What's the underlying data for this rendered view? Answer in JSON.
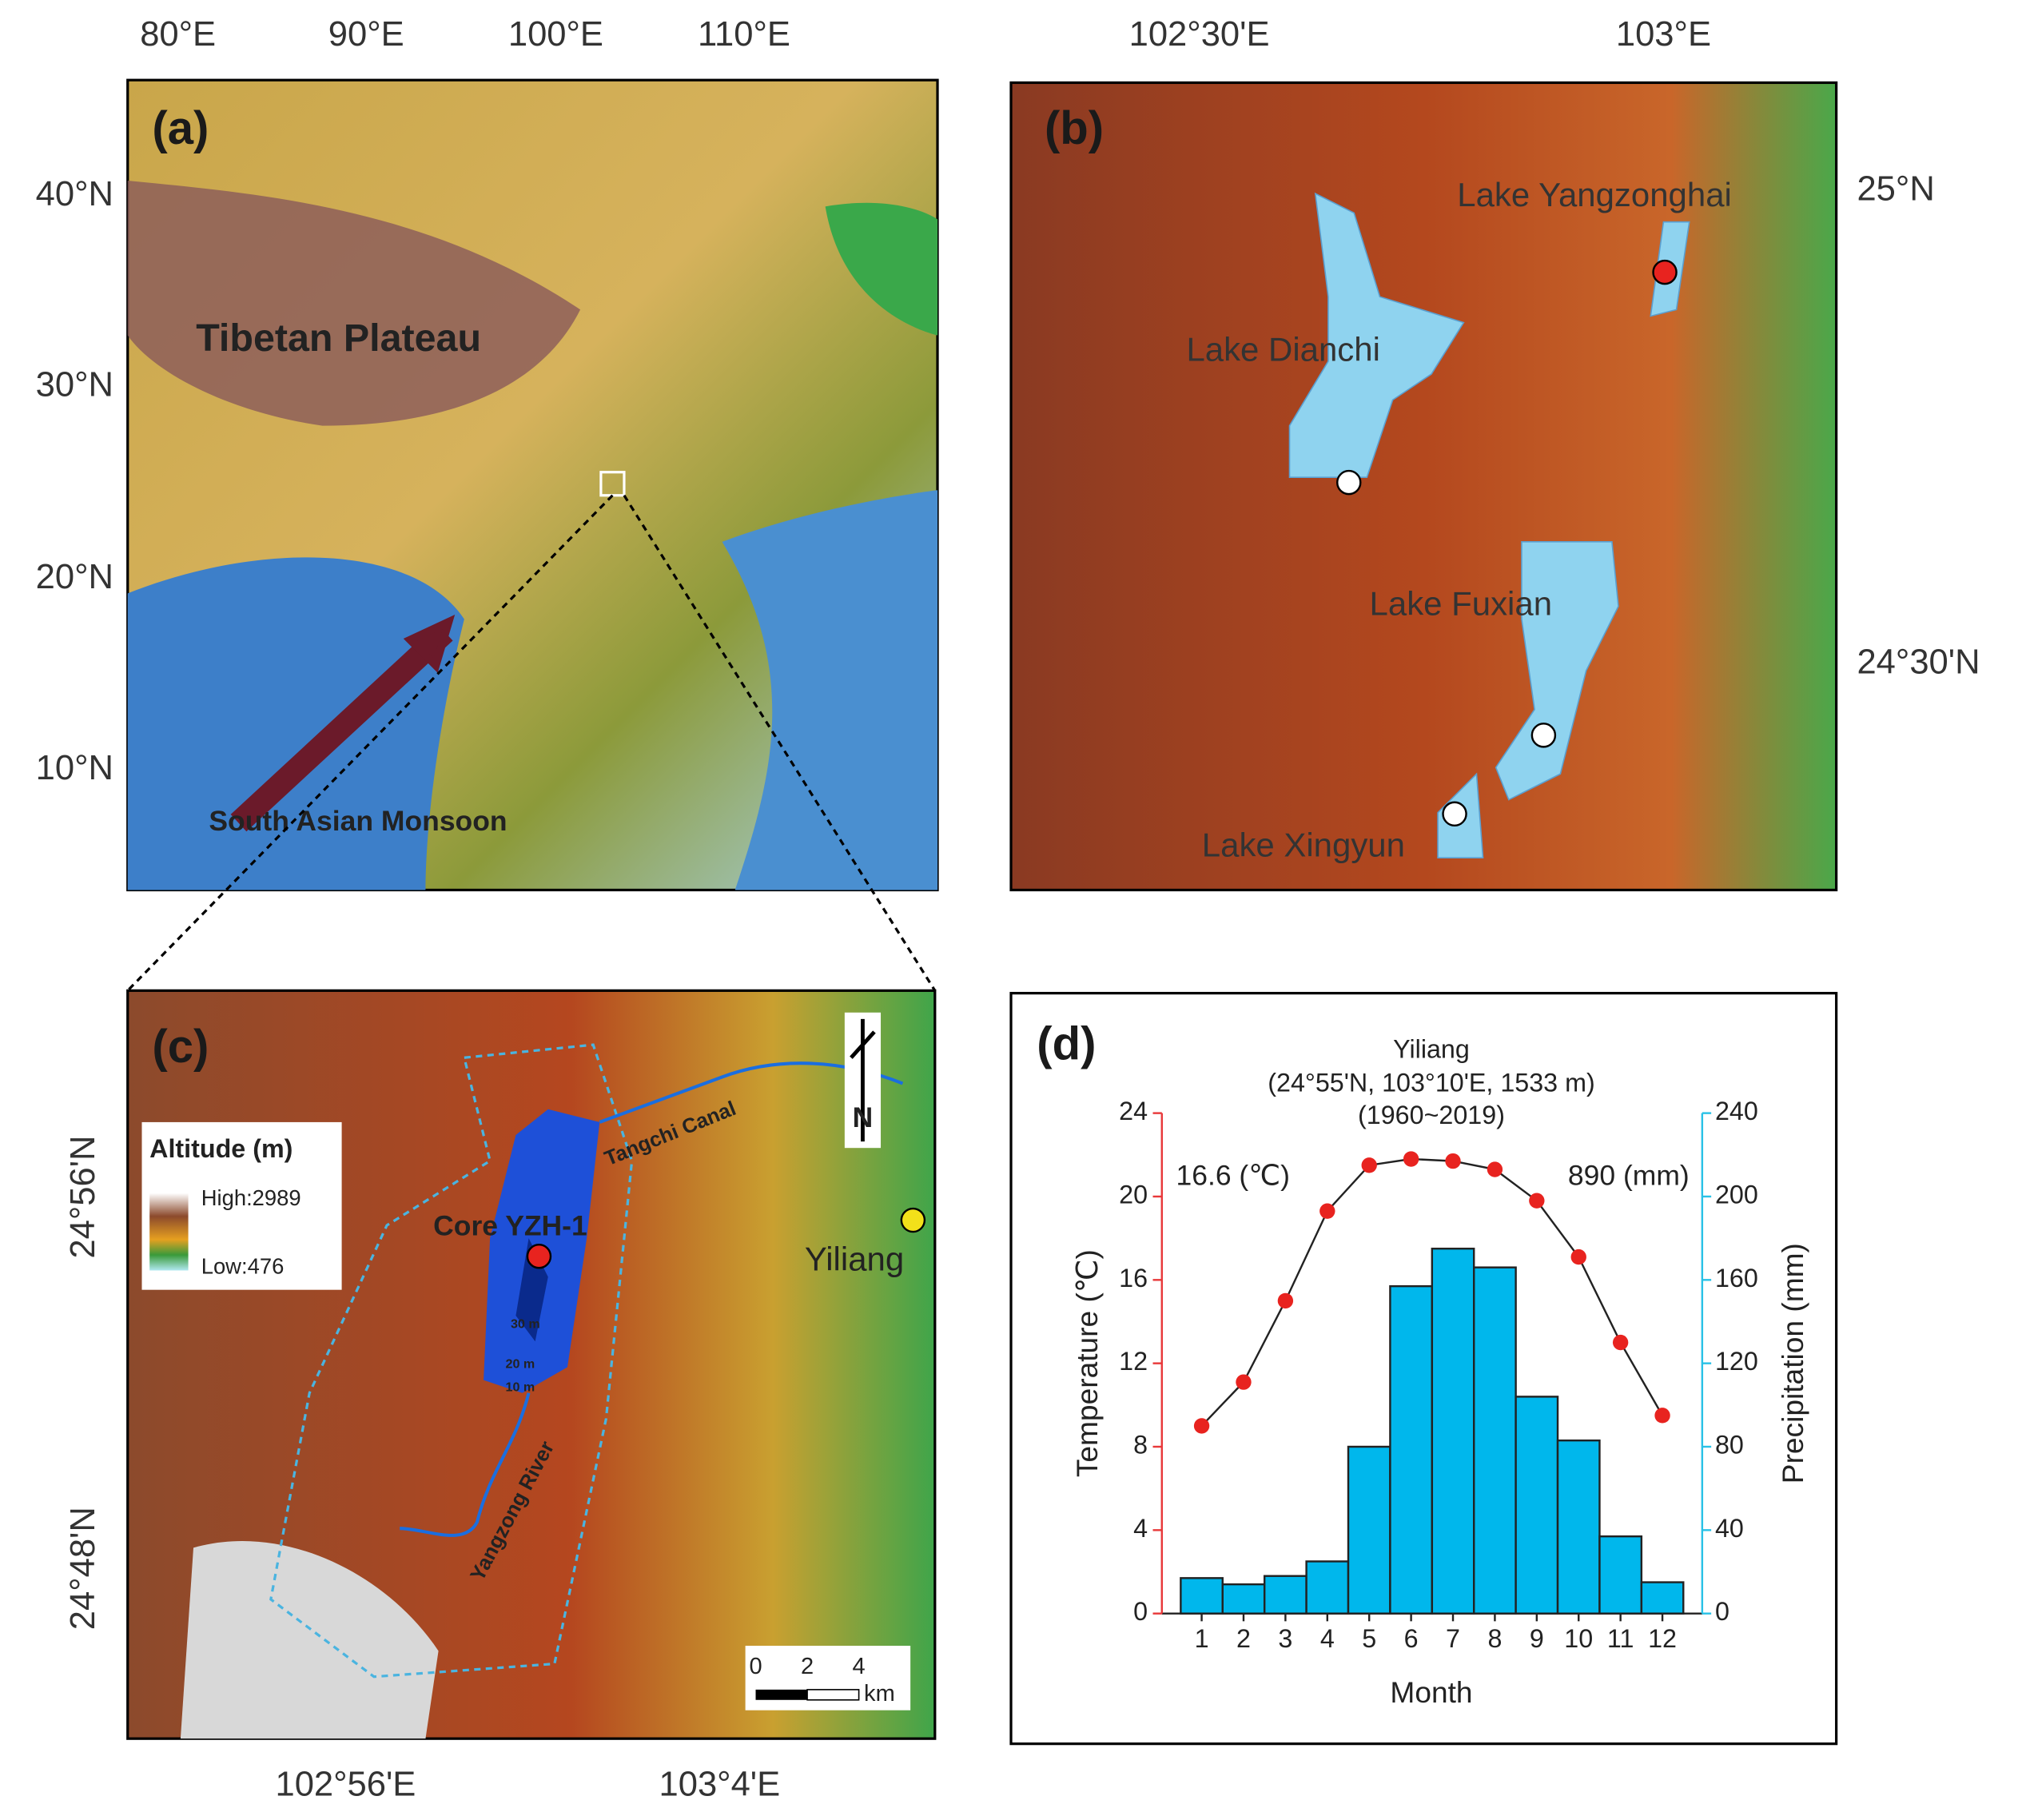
{
  "maps": {
    "a": {
      "label": "(a)",
      "x_ticks": [
        "80°E",
        "90°E",
        "100°E",
        "110°E"
      ],
      "y_ticks": [
        "40°N",
        "30°N",
        "20°N",
        "10°N"
      ],
      "annotations": [
        "Tibetan Plateau",
        "South Asian Monsoon"
      ]
    },
    "b": {
      "label": "(b)",
      "x_ticks": [
        "102°30'E",
        "103°E"
      ],
      "y_ticks": [
        "25°N",
        "24°30'N"
      ],
      "lakes": [
        "Lake Yangzonghai",
        "Lake Dianchi",
        "Lake Fuxian",
        "Lake Xingyun"
      ]
    },
    "c": {
      "label": "(c)",
      "x_ticks": [
        "102°56'E",
        "103°4'E"
      ],
      "y_ticks": [
        "24°56'N",
        "24°48'N"
      ],
      "legend": {
        "title": "Altitude (m)",
        "high": "High:2989",
        "low": "Low:476"
      },
      "annotations": [
        "Core YZH-1",
        "Yiliang",
        "Tangchi Canal",
        "Yangzong River",
        "30 m",
        "20 m",
        "10 m"
      ],
      "scale": [
        "0",
        "2",
        "4",
        "km"
      ],
      "north": "N"
    }
  },
  "chart_data": {
    "type": "bar_line",
    "panel_label": "(d)",
    "title": "Yiliang",
    "subtitle": [
      "(24°55'N, 103°10'E, 1533 m)",
      "(1960~2019)"
    ],
    "annotations": [
      "16.6 (℃)",
      "890 (mm)"
    ],
    "x_label": "Month",
    "y_label": "Temperature (℃)",
    "y2_label": "Precipitation (mm)",
    "categories": [
      "1",
      "2",
      "3",
      "4",
      "5",
      "6",
      "7",
      "8",
      "9",
      "10",
      "11",
      "12"
    ],
    "ylim": [
      0,
      24
    ],
    "yticks": [
      0,
      4,
      8,
      12,
      16,
      20,
      24
    ],
    "y2lim": [
      0,
      240
    ],
    "y2ticks": [
      0,
      40,
      80,
      120,
      160,
      200,
      240
    ],
    "y_axis_color": "#e8393a",
    "y2_axis_color": "#29c1e6",
    "series": [
      {
        "type": "bar",
        "axis": "y2",
        "color": "#00b7ec",
        "values": [
          17,
          14,
          18,
          25,
          80,
          157,
          175,
          166,
          104,
          83,
          37,
          15
        ]
      },
      {
        "type": "line",
        "axis": "y",
        "color": "#e8231f",
        "values": [
          9.0,
          11.1,
          15.0,
          19.3,
          21.5,
          21.8,
          21.7,
          21.3,
          19.8,
          17.1,
          13.0,
          9.5
        ]
      }
    ]
  }
}
